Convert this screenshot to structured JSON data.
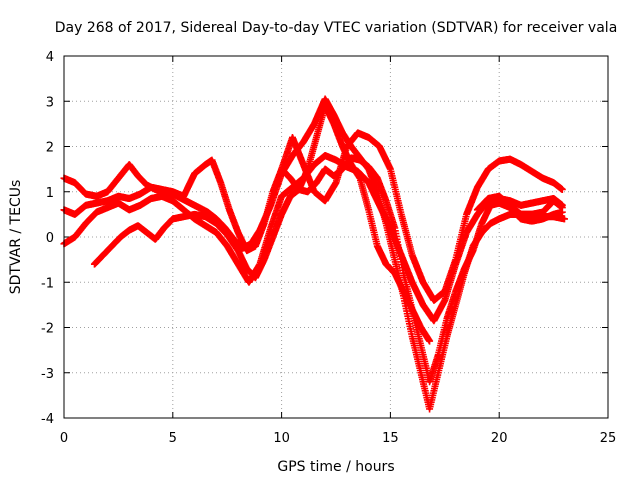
{
  "chart_data": {
    "type": "scatter",
    "title": "Day 268 of 2017, Sidereal Day-to-day VTEC variation (SDTVAR) for receiver vala",
    "xlabel": "GPS time / hours",
    "ylabel": "SDTVAR / TECUs",
    "xlim": [
      0,
      25
    ],
    "ylim": [
      -4,
      4
    ],
    "xticks": [
      0,
      5,
      10,
      15,
      20,
      25
    ],
    "yticks": [
      -4,
      -3,
      -2,
      -1,
      0,
      1,
      2,
      3,
      4
    ],
    "grid": true,
    "marker": "plus",
    "series": [
      {
        "color": "#ff0000",
        "points": [
          [
            0.0,
            1.3
          ],
          [
            0.5,
            1.2
          ],
          [
            1.0,
            0.95
          ],
          [
            1.5,
            0.9
          ],
          [
            2.0,
            1.0
          ],
          [
            2.5,
            1.3
          ],
          [
            3.0,
            1.6
          ],
          [
            3.4,
            1.35
          ],
          [
            3.8,
            1.15
          ],
          [
            4.2,
            1.05
          ],
          [
            4.6,
            1.0
          ],
          [
            5.0,
            0.95
          ],
          [
            5.4,
            0.85
          ],
          [
            5.8,
            0.75
          ],
          [
            6.2,
            0.65
          ],
          [
            6.6,
            0.55
          ],
          [
            7.0,
            0.4
          ],
          [
            7.4,
            0.2
          ],
          [
            7.8,
            -0.05
          ],
          [
            8.2,
            -0.25
          ],
          [
            8.6,
            -0.15
          ],
          [
            9.0,
            0.15
          ],
          [
            9.5,
            0.7
          ],
          [
            10.0,
            1.4
          ],
          [
            10.5,
            1.8
          ],
          [
            11.0,
            2.1
          ],
          [
            11.5,
            2.5
          ],
          [
            12.0,
            3.05
          ],
          [
            12.4,
            2.7
          ],
          [
            12.8,
            2.3
          ],
          [
            13.2,
            2.0
          ],
          [
            13.6,
            1.75
          ],
          [
            14.0,
            1.5
          ],
          [
            14.4,
            1.0
          ],
          [
            14.8,
            0.3
          ],
          [
            15.2,
            -0.5
          ],
          [
            15.6,
            -1.3
          ],
          [
            16.0,
            -2.2
          ],
          [
            16.4,
            -3.0
          ],
          [
            16.8,
            -3.8
          ],
          [
            17.2,
            -3.0
          ],
          [
            17.6,
            -2.2
          ],
          [
            18.0,
            -1.5
          ],
          [
            18.4,
            -0.8
          ],
          [
            18.8,
            -0.2
          ],
          [
            19.2,
            0.1
          ],
          [
            19.6,
            0.3
          ],
          [
            20.0,
            0.4
          ],
          [
            20.5,
            0.5
          ],
          [
            21.0,
            0.5
          ],
          [
            21.5,
            0.5
          ],
          [
            22.0,
            0.45
          ],
          [
            22.5,
            0.45
          ],
          [
            23.0,
            0.4
          ]
        ]
      },
      {
        "color": "#ff0000",
        "points": [
          [
            0.0,
            0.6
          ],
          [
            0.5,
            0.5
          ],
          [
            1.0,
            0.7
          ],
          [
            1.5,
            0.75
          ],
          [
            2.0,
            0.8
          ],
          [
            2.5,
            0.9
          ],
          [
            3.0,
            0.85
          ],
          [
            3.5,
            0.95
          ],
          [
            4.0,
            1.1
          ],
          [
            4.5,
            1.05
          ],
          [
            5.0,
            1.0
          ],
          [
            5.5,
            0.9
          ],
          [
            6.0,
            1.4
          ],
          [
            6.5,
            1.6
          ],
          [
            6.8,
            1.7
          ],
          [
            7.2,
            1.2
          ],
          [
            7.6,
            0.6
          ],
          [
            8.0,
            0.1
          ],
          [
            8.4,
            -0.3
          ],
          [
            8.8,
            -0.2
          ],
          [
            9.2,
            0.3
          ],
          [
            9.6,
            1.0
          ],
          [
            10.0,
            1.5
          ],
          [
            10.4,
            1.3
          ],
          [
            10.8,
            1.05
          ],
          [
            11.2,
            1.5
          ],
          [
            11.6,
            2.2
          ],
          [
            12.0,
            2.9
          ],
          [
            12.4,
            2.5
          ],
          [
            12.8,
            2.0
          ],
          [
            13.2,
            1.6
          ],
          [
            13.6,
            1.3
          ],
          [
            14.0,
            0.6
          ],
          [
            14.4,
            -0.2
          ],
          [
            14.8,
            -0.6
          ],
          [
            15.2,
            -0.8
          ],
          [
            15.6,
            -1.2
          ],
          [
            16.0,
            -1.6
          ],
          [
            16.4,
            -2.0
          ],
          [
            16.8,
            -2.3
          ]
        ]
      },
      {
        "color": "#ff0000",
        "points": [
          [
            0.0,
            -0.15
          ],
          [
            0.5,
            0.0
          ],
          [
            1.0,
            0.3
          ],
          [
            1.5,
            0.55
          ],
          [
            2.0,
            0.65
          ],
          [
            2.5,
            0.75
          ],
          [
            3.0,
            0.6
          ],
          [
            3.5,
            0.7
          ],
          [
            4.0,
            0.85
          ],
          [
            4.5,
            0.9
          ],
          [
            5.0,
            0.8
          ],
          [
            5.5,
            0.6
          ],
          [
            6.0,
            0.4
          ],
          [
            6.5,
            0.25
          ],
          [
            7.0,
            0.1
          ],
          [
            7.5,
            -0.2
          ],
          [
            8.0,
            -0.6
          ],
          [
            8.5,
            -1.0
          ],
          [
            9.0,
            -0.6
          ],
          [
            9.5,
            0.2
          ],
          [
            10.0,
            0.9
          ],
          [
            10.5,
            1.1
          ],
          [
            11.0,
            1.3
          ],
          [
            11.5,
            1.6
          ],
          [
            12.0,
            1.8
          ],
          [
            12.5,
            1.7
          ],
          [
            13.0,
            1.55
          ],
          [
            13.5,
            1.45
          ],
          [
            14.0,
            1.2
          ],
          [
            14.5,
            0.7
          ],
          [
            15.0,
            0.2
          ],
          [
            15.5,
            -0.4
          ],
          [
            16.0,
            -1.0
          ],
          [
            16.5,
            -1.5
          ],
          [
            17.0,
            -1.85
          ],
          [
            17.5,
            -1.4
          ],
          [
            18.0,
            -0.6
          ],
          [
            18.5,
            0.1
          ],
          [
            19.0,
            0.5
          ],
          [
            19.5,
            0.8
          ],
          [
            20.0,
            0.85
          ],
          [
            20.5,
            0.8
          ],
          [
            21.0,
            0.7
          ],
          [
            21.5,
            0.75
          ],
          [
            22.0,
            0.8
          ],
          [
            22.5,
            0.85
          ],
          [
            22.9,
            0.7
          ]
        ]
      },
      {
        "color": "#ff0000",
        "points": [
          [
            1.4,
            -0.6
          ],
          [
            1.8,
            -0.4
          ],
          [
            2.2,
            -0.2
          ],
          [
            2.6,
            0.0
          ],
          [
            3.0,
            0.15
          ],
          [
            3.4,
            0.25
          ],
          [
            3.8,
            0.1
          ],
          [
            4.2,
            -0.05
          ],
          [
            4.6,
            0.2
          ],
          [
            5.0,
            0.4
          ],
          [
            5.5,
            0.45
          ],
          [
            6.0,
            0.5
          ],
          [
            6.5,
            0.45
          ],
          [
            7.0,
            0.3
          ],
          [
            7.5,
            0.05
          ],
          [
            8.0,
            -0.3
          ],
          [
            8.4,
            -0.7
          ],
          [
            8.8,
            -0.9
          ],
          [
            9.2,
            -0.5
          ],
          [
            9.6,
            0.0
          ],
          [
            10.0,
            0.5
          ],
          [
            10.4,
            0.9
          ],
          [
            10.8,
            1.05
          ],
          [
            11.2,
            1.0
          ],
          [
            11.6,
            1.2
          ],
          [
            12.0,
            1.5
          ],
          [
            12.4,
            1.35
          ],
          [
            12.8,
            1.5
          ],
          [
            13.2,
            1.75
          ],
          [
            13.6,
            1.7
          ],
          [
            14.0,
            1.55
          ],
          [
            14.4,
            1.3
          ],
          [
            14.8,
            0.8
          ],
          [
            15.2,
            0.2
          ],
          [
            15.6,
            -0.8
          ],
          [
            16.0,
            -1.6
          ],
          [
            16.4,
            -2.4
          ],
          [
            16.8,
            -3.2
          ],
          [
            17.2,
            -2.6
          ],
          [
            17.6,
            -1.8
          ],
          [
            18.0,
            -1.2
          ],
          [
            18.4,
            -0.7
          ],
          [
            18.8,
            -0.3
          ],
          [
            19.2,
            0.3
          ],
          [
            19.6,
            0.7
          ],
          [
            20.0,
            0.75
          ],
          [
            20.5,
            0.65
          ],
          [
            21.0,
            0.4
          ],
          [
            21.5,
            0.35
          ],
          [
            22.0,
            0.4
          ],
          [
            22.5,
            0.5
          ],
          [
            22.9,
            0.55
          ]
        ]
      },
      {
        "color": "#ff0000",
        "points": [
          [
            10.0,
            1.5
          ],
          [
            10.5,
            2.2
          ],
          [
            11.0,
            1.6
          ],
          [
            11.5,
            1.0
          ],
          [
            12.0,
            0.8
          ],
          [
            12.5,
            1.2
          ],
          [
            13.0,
            2.0
          ],
          [
            13.5,
            2.3
          ],
          [
            14.0,
            2.2
          ],
          [
            14.5,
            2.0
          ],
          [
            15.0,
            1.5
          ],
          [
            15.5,
            0.5
          ],
          [
            16.0,
            -0.4
          ],
          [
            16.5,
            -1.0
          ],
          [
            17.0,
            -1.4
          ],
          [
            17.5,
            -1.2
          ],
          [
            18.0,
            -0.5
          ],
          [
            18.5,
            0.5
          ],
          [
            19.0,
            1.1
          ],
          [
            19.5,
            1.5
          ],
          [
            20.0,
            1.68
          ],
          [
            20.5,
            1.72
          ],
          [
            21.0,
            1.6
          ],
          [
            21.5,
            1.45
          ],
          [
            22.0,
            1.3
          ],
          [
            22.5,
            1.2
          ],
          [
            22.9,
            1.05
          ]
        ]
      },
      {
        "color": "#ff0000",
        "points": [
          [
            19.0,
            0.6
          ],
          [
            19.5,
            0.85
          ],
          [
            20.0,
            0.9
          ],
          [
            20.5,
            0.7
          ],
          [
            21.0,
            0.5
          ],
          [
            21.5,
            0.5
          ],
          [
            22.0,
            0.55
          ],
          [
            22.5,
            0.8
          ],
          [
            22.9,
            0.65
          ]
        ]
      }
    ]
  }
}
